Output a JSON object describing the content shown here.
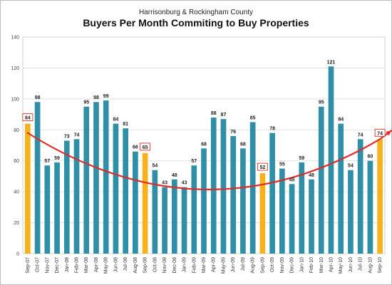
{
  "chart_data": {
    "type": "bar",
    "subtitle": "Harrisonburg & Rockingham County",
    "title": "Buyers Per Month Commiting to Buy Properties",
    "categories": [
      "Sep-07",
      "Oct-07",
      "Nov-07",
      "Dec-07",
      "Jan-08",
      "Feb-08",
      "Mar-08",
      "Apr-08",
      "May-08",
      "Jun-08",
      "Jul-08",
      "Aug-08",
      "Sep-08",
      "Oct-08",
      "Nov-08",
      "Dec-08",
      "Jan-09",
      "Feb-09",
      "Mar-09",
      "Apr-09",
      "May-09",
      "Jun-09",
      "Jul-09",
      "Aug-09",
      "Sep-09",
      "Oct-09",
      "Nov-09",
      "Dec-09",
      "Jan-10",
      "Feb-10",
      "Mar-10",
      "Apr-10",
      "May-10",
      "Jun-10",
      "Jul-10",
      "Aug-10",
      "Sep-10"
    ],
    "values": [
      84,
      98,
      57,
      59,
      73,
      74,
      95,
      98,
      99,
      84,
      81,
      66,
      65,
      54,
      43,
      48,
      43,
      57,
      68,
      88,
      87,
      76,
      68,
      85,
      52,
      78,
      55,
      45,
      59,
      48,
      95,
      121,
      84,
      54,
      74,
      60,
      74
    ],
    "highlighted": [
      "Sep-07",
      "Sep-08",
      "Sep-09",
      "Sep-10"
    ],
    "boxed_labels": [
      "Sep-07",
      "Sep-08",
      "Sep-09",
      "Sep-10"
    ],
    "ylim": [
      0,
      140
    ],
    "yticks": [
      0,
      20,
      40,
      60,
      80,
      100,
      120,
      140
    ],
    "grid": true,
    "colors": {
      "bar": "#2f8fa6",
      "highlight": "#f6b21c",
      "trend": "#e02b2b",
      "label_box": "#d9302c"
    },
    "trend": {
      "type": "polynomial",
      "points": [
        78,
        41.5,
        74
      ]
    }
  }
}
